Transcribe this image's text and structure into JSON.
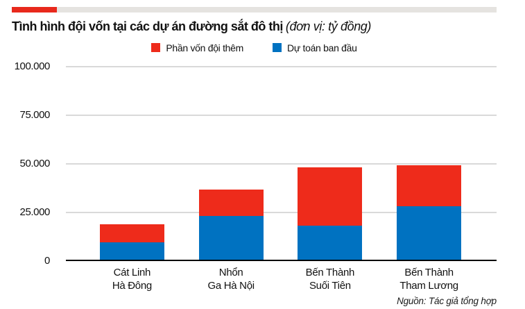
{
  "header": {
    "accent_bar": {
      "red_color": "#e8291c",
      "gray_color": "#e5e3e0"
    },
    "title": "Tình hình đội vốn tại các dự án đường sắt đô thị",
    "title_unit": "(đơn vị: tỷ đồng)"
  },
  "legend": {
    "items": [
      {
        "label": "Phần vốn đội thêm",
        "color": "#ee2b1b"
      },
      {
        "label": "Dự toán ban đầu",
        "color": "#0072c1"
      }
    ]
  },
  "footer": {
    "source": "Nguồn: Tác giả tổng hợp"
  },
  "chart_data": {
    "type": "bar",
    "stacked": true,
    "title": "Tình hình đội vốn tại các dự án đường sắt đô thị",
    "unit": "tỷ đồng",
    "categories": [
      "Cát Linh – Hà Đông",
      "Nhổn – Ga Hà Nội",
      "Bến Thành – Suối Tiên",
      "Bến Thành – Tham Lương"
    ],
    "category_label_lines": [
      [
        "Cát Linh",
        "Hà Đông"
      ],
      [
        "Nhổn",
        "Ga Hà Nội"
      ],
      [
        "Bến Thành",
        "Suối Tiên"
      ],
      [
        "Bến Thành",
        "Tham Lương"
      ]
    ],
    "series": [
      {
        "name": "Dự toán ban đầu",
        "color": "#0072c1",
        "values": [
          8770,
          22500,
          17400,
          27200
        ]
      },
      {
        "name": "Phần vốn đội thêm",
        "color": "#ee2b1b",
        "values": [
          9230,
          13500,
          29900,
          21100
        ]
      }
    ],
    "totals": [
      18000,
      36000,
      47300,
      48300
    ],
    "y_axis": {
      "min": 0,
      "max": 100000,
      "ticks": [
        0,
        25000,
        50000,
        75000,
        100000
      ],
      "tick_labels": [
        "0",
        "25.000",
        "50.000",
        "75.000",
        "100.000"
      ]
    },
    "grid": "horizontal",
    "legend_position": "top-center",
    "colors": {
      "grid": "#d9d9d9",
      "axis": "#000000"
    }
  }
}
